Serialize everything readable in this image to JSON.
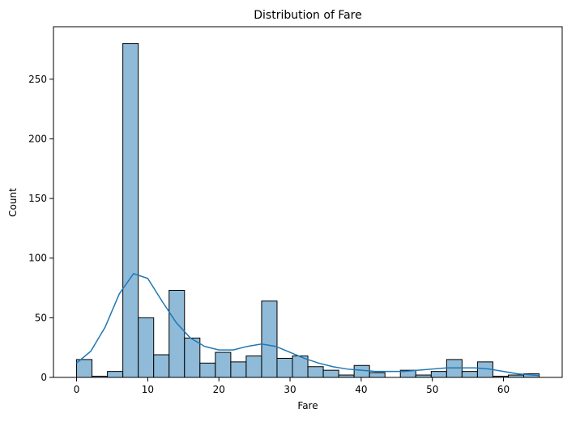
{
  "chart_data": {
    "type": "histogram",
    "title": "Distribution of Fare",
    "xlabel": "Fare",
    "ylabel": "Count",
    "xlim": [
      -3.25,
      68.25
    ],
    "ylim": [
      0,
      294
    ],
    "xticks": [
      0,
      10,
      20,
      30,
      40,
      50,
      60
    ],
    "yticks": [
      0,
      50,
      100,
      150,
      200,
      250
    ],
    "bin_width": 2.167,
    "bin_start": 0,
    "bar_color": "#8fbbd9",
    "bar_edge_color": "#000000",
    "kde_color": "#1f77b4",
    "counts": [
      15,
      1,
      5,
      280,
      50,
      19,
      73,
      33,
      12,
      21,
      13,
      18,
      64,
      16,
      18,
      9,
      6,
      2,
      10,
      4,
      0,
      6,
      2,
      5,
      15,
      5,
      13,
      1,
      2,
      3
    ],
    "kde": [
      [
        0,
        12
      ],
      [
        2,
        22
      ],
      [
        4,
        42
      ],
      [
        6,
        70
      ],
      [
        8,
        87
      ],
      [
        10,
        83
      ],
      [
        12,
        64
      ],
      [
        14,
        46
      ],
      [
        16,
        33
      ],
      [
        18,
        26
      ],
      [
        20,
        23
      ],
      [
        22,
        23
      ],
      [
        24,
        26
      ],
      [
        26,
        28
      ],
      [
        28,
        26
      ],
      [
        30,
        21
      ],
      [
        32,
        16
      ],
      [
        34,
        12
      ],
      [
        36,
        9
      ],
      [
        38,
        7
      ],
      [
        40,
        6
      ],
      [
        42,
        5
      ],
      [
        44,
        5
      ],
      [
        46,
        5
      ],
      [
        48,
        6
      ],
      [
        50,
        7
      ],
      [
        52,
        8
      ],
      [
        54,
        8
      ],
      [
        56,
        8
      ],
      [
        58,
        7
      ],
      [
        60,
        5
      ],
      [
        62,
        3
      ],
      [
        64,
        2
      ],
      [
        65,
        1.5
      ]
    ]
  }
}
